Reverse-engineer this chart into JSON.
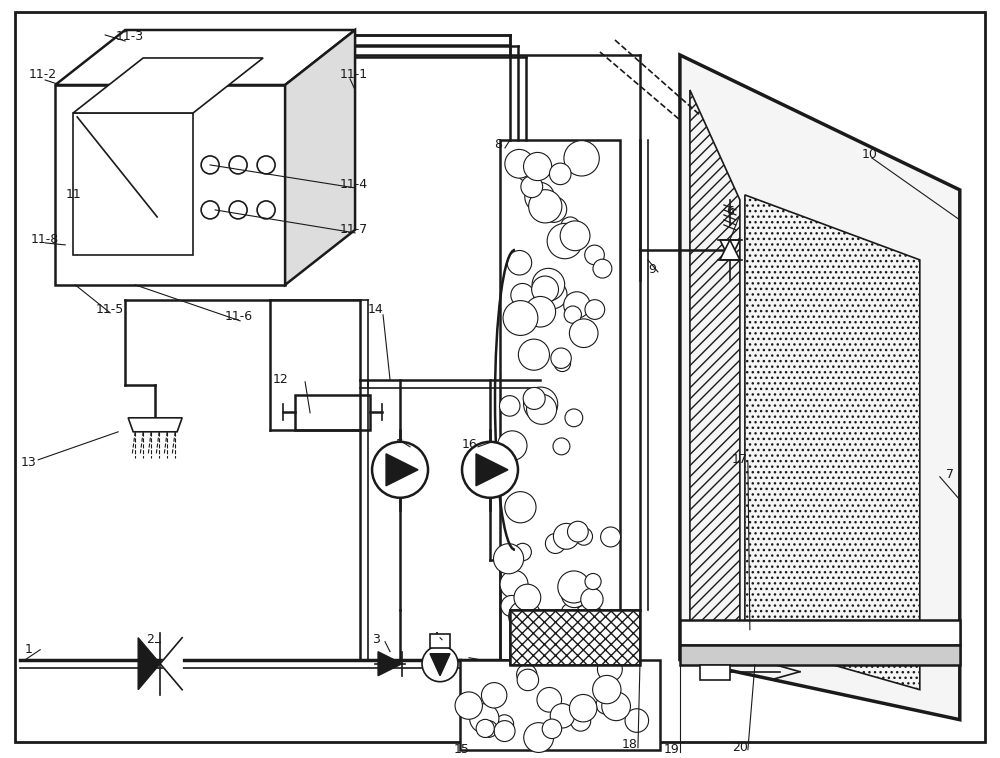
{
  "bg_color": "#ffffff",
  "line_color": "#1a1a1a",
  "label_color": "#1a1a1a"
}
